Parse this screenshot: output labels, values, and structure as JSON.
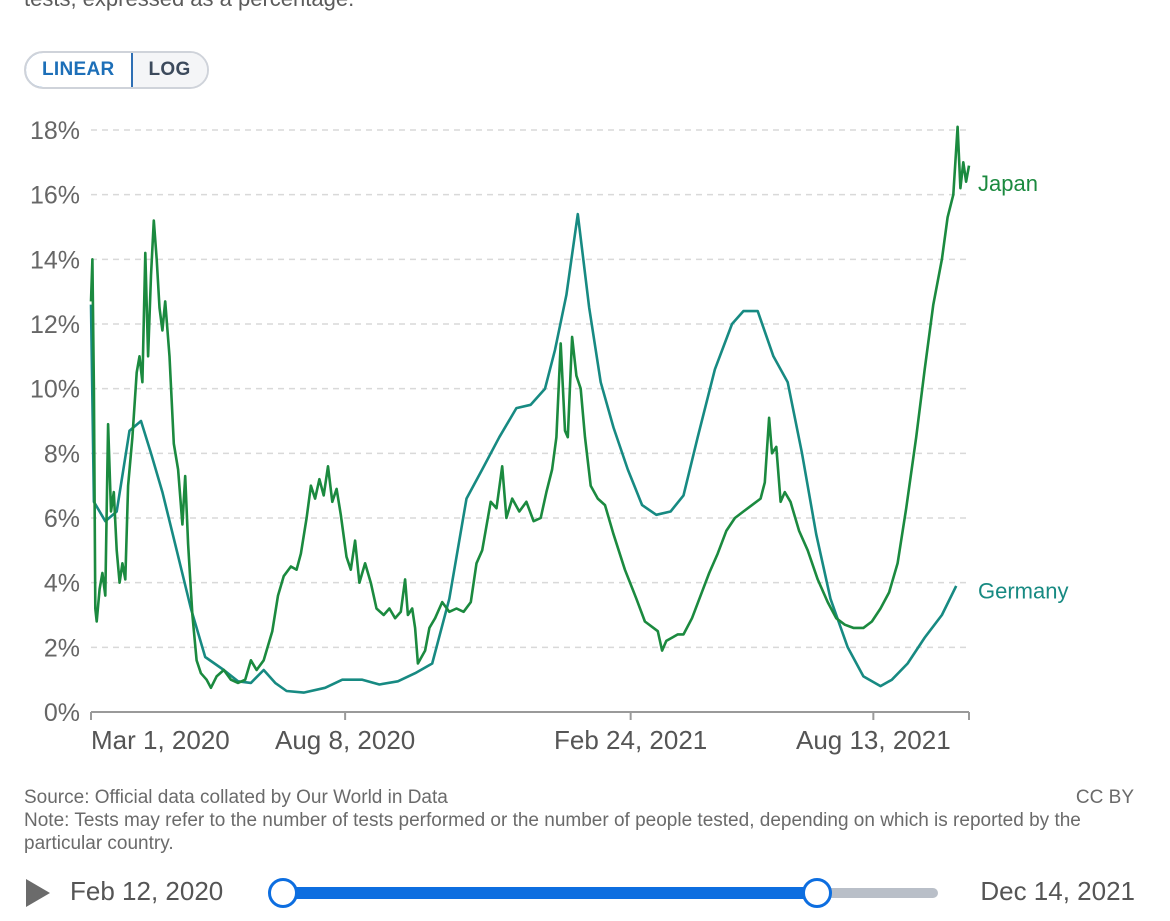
{
  "subtitle_cut": "tests, expressed as a percentage.",
  "scale_toggle": {
    "linear_label": "LINEAR",
    "log_label": "LOG",
    "active": "LINEAR"
  },
  "chart_data": {
    "type": "line",
    "xlabel": "",
    "ylabel": "",
    "ylim": [
      0,
      18
    ],
    "y_ticks": [
      "0%",
      "2%",
      "4%",
      "6%",
      "8%",
      "10%",
      "12%",
      "14%",
      "16%",
      "18%"
    ],
    "x_ticks": [
      "Mar 1, 2020",
      "Aug 8, 2020",
      "Feb 24, 2021",
      "Aug 13, 2021"
    ],
    "x_range": [
      "2020-02-12",
      "2021-12-14"
    ],
    "grid": "horizontal dashed",
    "legend": "line-end labels",
    "series": [
      {
        "name": "Japan",
        "color": "#1b8a3f",
        "points": [
          [
            "2020-02-12",
            12.7
          ],
          [
            "2020-02-13",
            14.0
          ],
          [
            "2020-02-14",
            10.0
          ],
          [
            "2020-02-15",
            3.2
          ],
          [
            "2020-02-16",
            2.8
          ],
          [
            "2020-02-18",
            3.8
          ],
          [
            "2020-02-20",
            4.3
          ],
          [
            "2020-02-22",
            3.6
          ],
          [
            "2020-02-24",
            8.9
          ],
          [
            "2020-02-26",
            6.2
          ],
          [
            "2020-02-28",
            6.8
          ],
          [
            "2020-03-01",
            5.0
          ],
          [
            "2020-03-03",
            4.0
          ],
          [
            "2020-03-05",
            4.6
          ],
          [
            "2020-03-07",
            4.1
          ],
          [
            "2020-03-09",
            7.0
          ],
          [
            "2020-03-12",
            8.5
          ],
          [
            "2020-03-15",
            10.5
          ],
          [
            "2020-03-17",
            11.0
          ],
          [
            "2020-03-19",
            10.2
          ],
          [
            "2020-03-21",
            14.2
          ],
          [
            "2020-03-23",
            11.0
          ],
          [
            "2020-03-25",
            13.5
          ],
          [
            "2020-03-27",
            15.2
          ],
          [
            "2020-03-29",
            14.0
          ],
          [
            "2020-03-31",
            12.5
          ],
          [
            "2020-04-02",
            11.8
          ],
          [
            "2020-04-04",
            12.7
          ],
          [
            "2020-04-07",
            11.0
          ],
          [
            "2020-04-10",
            8.3
          ],
          [
            "2020-04-13",
            7.5
          ],
          [
            "2020-04-16",
            5.8
          ],
          [
            "2020-04-18",
            7.3
          ],
          [
            "2020-04-20",
            5.2
          ],
          [
            "2020-04-23",
            3.0
          ],
          [
            "2020-04-26",
            1.6
          ],
          [
            "2020-04-29",
            1.2
          ],
          [
            "2020-05-03",
            1.0
          ],
          [
            "2020-05-06",
            0.75
          ],
          [
            "2020-05-10",
            1.1
          ],
          [
            "2020-05-15",
            1.3
          ],
          [
            "2020-05-20",
            1.0
          ],
          [
            "2020-05-25",
            0.9
          ],
          [
            "2020-05-30",
            1.0
          ],
          [
            "2020-06-03",
            1.6
          ],
          [
            "2020-06-07",
            1.3
          ],
          [
            "2020-06-12",
            1.6
          ],
          [
            "2020-06-18",
            2.5
          ],
          [
            "2020-06-22",
            3.6
          ],
          [
            "2020-06-26",
            4.2
          ],
          [
            "2020-07-01",
            4.5
          ],
          [
            "2020-07-05",
            4.4
          ],
          [
            "2020-07-08",
            4.9
          ],
          [
            "2020-07-12",
            6.0
          ],
          [
            "2020-07-15",
            7.0
          ],
          [
            "2020-07-18",
            6.6
          ],
          [
            "2020-07-21",
            7.2
          ],
          [
            "2020-07-24",
            6.7
          ],
          [
            "2020-07-27",
            7.6
          ],
          [
            "2020-07-30",
            6.5
          ],
          [
            "2020-08-02",
            6.9
          ],
          [
            "2020-08-05",
            6.1
          ],
          [
            "2020-08-09",
            4.8
          ],
          [
            "2020-08-12",
            4.4
          ],
          [
            "2020-08-15",
            5.3
          ],
          [
            "2020-08-18",
            4.0
          ],
          [
            "2020-08-22",
            4.6
          ],
          [
            "2020-08-26",
            4.0
          ],
          [
            "2020-08-30",
            3.2
          ],
          [
            "2020-09-04",
            3.0
          ],
          [
            "2020-09-08",
            3.2
          ],
          [
            "2020-09-12",
            2.9
          ],
          [
            "2020-09-16",
            3.1
          ],
          [
            "2020-09-19",
            4.1
          ],
          [
            "2020-09-21",
            3.0
          ],
          [
            "2020-09-24",
            3.2
          ],
          [
            "2020-09-26",
            2.6
          ],
          [
            "2020-09-28",
            1.5
          ],
          [
            "2020-10-03",
            1.9
          ],
          [
            "2020-10-06",
            2.6
          ],
          [
            "2020-10-10",
            2.9
          ],
          [
            "2020-10-15",
            3.4
          ],
          [
            "2020-10-20",
            3.1
          ],
          [
            "2020-10-25",
            3.2
          ],
          [
            "2020-10-30",
            3.1
          ],
          [
            "2020-11-04",
            3.4
          ],
          [
            "2020-11-08",
            4.6
          ],
          [
            "2020-11-12",
            5.0
          ],
          [
            "2020-11-18",
            6.5
          ],
          [
            "2020-11-22",
            6.3
          ],
          [
            "2020-11-26",
            7.6
          ],
          [
            "2020-11-29",
            6.0
          ],
          [
            "2020-12-03",
            6.6
          ],
          [
            "2020-12-08",
            6.2
          ],
          [
            "2020-12-13",
            6.5
          ],
          [
            "2020-12-18",
            5.9
          ],
          [
            "2020-12-23",
            6.0
          ],
          [
            "2020-12-27",
            6.8
          ],
          [
            "2020-12-31",
            7.5
          ],
          [
            "2021-01-03",
            8.5
          ],
          [
            "2021-01-06",
            11.4
          ],
          [
            "2021-01-09",
            8.7
          ],
          [
            "2021-01-11",
            8.5
          ],
          [
            "2021-01-14",
            11.6
          ],
          [
            "2021-01-17",
            10.4
          ],
          [
            "2021-01-20",
            10.0
          ],
          [
            "2021-01-23",
            8.5
          ],
          [
            "2021-01-27",
            7.0
          ],
          [
            "2021-02-01",
            6.6
          ],
          [
            "2021-02-06",
            6.4
          ],
          [
            "2021-02-12",
            5.5
          ],
          [
            "2021-02-20",
            4.4
          ],
          [
            "2021-02-28",
            3.5
          ],
          [
            "2021-03-06",
            2.8
          ],
          [
            "2021-03-12",
            2.6
          ],
          [
            "2021-03-15",
            2.5
          ],
          [
            "2021-03-18",
            1.9
          ],
          [
            "2021-03-21",
            2.2
          ],
          [
            "2021-03-25",
            2.3
          ],
          [
            "2021-03-29",
            2.4
          ],
          [
            "2021-04-02",
            2.4
          ],
          [
            "2021-04-08",
            2.9
          ],
          [
            "2021-04-14",
            3.6
          ],
          [
            "2021-04-20",
            4.3
          ],
          [
            "2021-04-26",
            4.9
          ],
          [
            "2021-05-02",
            5.6
          ],
          [
            "2021-05-08",
            6.0
          ],
          [
            "2021-05-14",
            6.2
          ],
          [
            "2021-05-20",
            6.4
          ],
          [
            "2021-05-26",
            6.6
          ],
          [
            "2021-05-29",
            7.1
          ],
          [
            "2021-06-01",
            9.1
          ],
          [
            "2021-06-03",
            8.0
          ],
          [
            "2021-06-06",
            8.2
          ],
          [
            "2021-06-09",
            6.5
          ],
          [
            "2021-06-12",
            6.8
          ],
          [
            "2021-06-16",
            6.5
          ],
          [
            "2021-06-22",
            5.6
          ],
          [
            "2021-06-28",
            5.0
          ],
          [
            "2021-07-05",
            4.1
          ],
          [
            "2021-07-12",
            3.4
          ],
          [
            "2021-07-18",
            2.9
          ],
          [
            "2021-07-24",
            2.7
          ],
          [
            "2021-07-30",
            2.6
          ],
          [
            "2021-08-06",
            2.6
          ],
          [
            "2021-08-12",
            2.8
          ],
          [
            "2021-08-18",
            3.2
          ],
          [
            "2021-08-24",
            3.7
          ],
          [
            "2021-08-30",
            4.6
          ],
          [
            "2021-09-05",
            6.3
          ],
          [
            "2021-09-12",
            8.5
          ],
          [
            "2021-09-18",
            10.6
          ],
          [
            "2021-09-24",
            12.6
          ],
          [
            "2021-09-30",
            14.0
          ],
          [
            "2021-10-04",
            15.3
          ],
          [
            "2021-10-08",
            16.0
          ],
          [
            "2021-10-11",
            18.1
          ],
          [
            "2021-10-13",
            16.2
          ],
          [
            "2021-10-15",
            17.0
          ],
          [
            "2021-10-17",
            16.4
          ],
          [
            "2021-10-19",
            16.9
          ]
        ]
      },
      {
        "name": "Germany",
        "color": "#178a82",
        "points": [
          [
            "2020-02-12",
            12.6
          ],
          [
            "2020-02-14",
            6.5
          ],
          [
            "2020-02-22",
            5.9
          ],
          [
            "2020-03-01",
            6.2
          ],
          [
            "2020-03-10",
            8.7
          ],
          [
            "2020-03-18",
            9.0
          ],
          [
            "2020-03-25",
            8.0
          ],
          [
            "2020-04-02",
            6.8
          ],
          [
            "2020-04-12",
            5.0
          ],
          [
            "2020-04-22",
            3.2
          ],
          [
            "2020-05-02",
            1.7
          ],
          [
            "2020-05-15",
            1.3
          ],
          [
            "2020-05-25",
            0.95
          ],
          [
            "2020-06-03",
            0.9
          ],
          [
            "2020-06-12",
            1.3
          ],
          [
            "2020-06-20",
            0.9
          ],
          [
            "2020-06-28",
            0.65
          ],
          [
            "2020-07-10",
            0.6
          ],
          [
            "2020-07-25",
            0.75
          ],
          [
            "2020-08-06",
            1.0
          ],
          [
            "2020-08-20",
            1.0
          ],
          [
            "2020-09-01",
            0.85
          ],
          [
            "2020-09-14",
            0.95
          ],
          [
            "2020-09-26",
            1.2
          ],
          [
            "2020-10-08",
            1.5
          ],
          [
            "2020-10-20",
            3.5
          ],
          [
            "2020-11-01",
            6.6
          ],
          [
            "2020-11-12",
            7.5
          ],
          [
            "2020-11-24",
            8.5
          ],
          [
            "2020-12-06",
            9.4
          ],
          [
            "2020-12-16",
            9.5
          ],
          [
            "2020-12-26",
            10.0
          ],
          [
            "2021-01-02",
            11.2
          ],
          [
            "2021-01-10",
            12.9
          ],
          [
            "2021-01-18",
            15.4
          ],
          [
            "2021-01-26",
            12.5
          ],
          [
            "2021-02-03",
            10.2
          ],
          [
            "2021-02-12",
            8.8
          ],
          [
            "2021-02-22",
            7.5
          ],
          [
            "2021-03-04",
            6.4
          ],
          [
            "2021-03-14",
            6.1
          ],
          [
            "2021-03-24",
            6.2
          ],
          [
            "2021-04-02",
            6.7
          ],
          [
            "2021-04-12",
            8.5
          ],
          [
            "2021-04-24",
            10.6
          ],
          [
            "2021-05-06",
            12.0
          ],
          [
            "2021-05-14",
            12.4
          ],
          [
            "2021-05-24",
            12.4
          ],
          [
            "2021-06-04",
            11.0
          ],
          [
            "2021-06-14",
            10.2
          ],
          [
            "2021-06-24",
            8.0
          ],
          [
            "2021-07-04",
            5.5
          ],
          [
            "2021-07-14",
            3.5
          ],
          [
            "2021-07-26",
            2.0
          ],
          [
            "2021-08-06",
            1.1
          ],
          [
            "2021-08-18",
            0.8
          ],
          [
            "2021-08-26",
            1.0
          ],
          [
            "2021-09-06",
            1.5
          ],
          [
            "2021-09-18",
            2.3
          ],
          [
            "2021-09-30",
            3.0
          ],
          [
            "2021-10-10",
            3.9
          ]
        ]
      }
    ]
  },
  "footer": {
    "source": "Source: Official data collated by Our World in Data",
    "license": "CC BY",
    "note": "Note: Tests may refer to the number of tests performed or the number of people tested, depending on which is reported by the particular country."
  },
  "timeline": {
    "start_label": "Feb 12, 2020",
    "end_label": "Dec 14, 2021",
    "range_start": "2020-02-12",
    "range_end": "2021-10-19"
  }
}
